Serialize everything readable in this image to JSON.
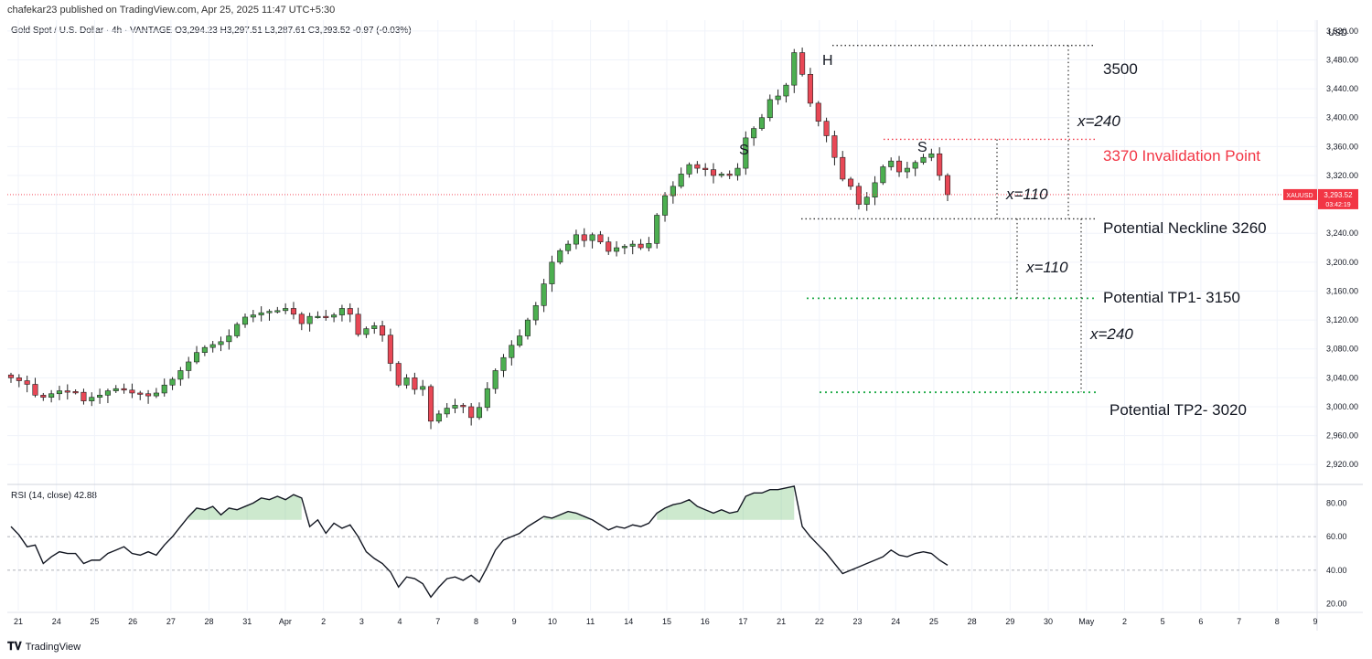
{
  "header": {
    "published": "chafekar23 published on TradingView.com, Apr 25, 2025 11:47 UTC+5:30",
    "symbol_line": "Gold Spot / U.S. Dollar · 4h · VANTAGE  O3,294.23  H3,297.51  L3,287.61  C3,293.52  -0.97 (-0.03%)",
    "currency": "USD"
  },
  "rsi": {
    "legend": "RSI (14, close)  42.88"
  },
  "footer": {
    "logo": "𝐓𝐕",
    "brand": "TradingView"
  },
  "price_tag": {
    "symbol": "XAUUSD",
    "price": "3,293.52",
    "timer": "03:42:19"
  },
  "colors": {
    "up": "#4caf50",
    "down": "#e84856",
    "grid": "#f0f3fa",
    "invalid": "#f23645",
    "tp": "#22ab4a"
  },
  "chart_data": {
    "type": "candlestick",
    "y_ticks": [
      "3,520.00",
      "3,480.00",
      "3,440.00",
      "3,400.00",
      "3,360.00",
      "3,320.00",
      "3,280.00",
      "3,240.00",
      "3,200.00",
      "3,160.00",
      "3,120.00",
      "3,080.00",
      "3,040.00",
      "3,000.00",
      "2,960.00",
      "2,920.00"
    ],
    "y_tick_values": [
      3520,
      3480,
      3440,
      3400,
      3360,
      3320,
      3280,
      3240,
      3200,
      3160,
      3120,
      3080,
      3040,
      3000,
      2960,
      2920
    ],
    "ylim": [
      2895,
      3535
    ],
    "x_ticks": [
      "21",
      "24",
      "25",
      "26",
      "27",
      "28",
      "31",
      "Apr",
      "2",
      "3",
      "4",
      "7",
      "8",
      "9",
      "10",
      "11",
      "14",
      "15",
      "16",
      "17",
      "21",
      "22",
      "23",
      "24",
      "25",
      "28",
      "29",
      "30",
      "May",
      "2",
      "5",
      "6",
      "7",
      "8",
      "9"
    ],
    "candles_close": [
      3040,
      3036,
      3031,
      3016,
      3013,
      3018,
      3022,
      3021,
      3020,
      3008,
      3013,
      3016,
      3022,
      3025,
      3023,
      3019,
      3018,
      3015,
      3019,
      3030,
      3038,
      3050,
      3062,
      3075,
      3082,
      3086,
      3090,
      3098,
      3114,
      3124,
      3127,
      3130,
      3132,
      3133,
      3136,
      3128,
      3115,
      3125,
      3125,
      3124,
      3127,
      3136,
      3128,
      3100,
      3108,
      3112,
      3099,
      3060,
      3030,
      3040,
      3024,
      3028,
      2980,
      2990,
      2998,
      3002,
      3000,
      2985,
      2999,
      3025,
      3050,
      3068,
      3085,
      3098,
      3120,
      3140,
      3170,
      3200,
      3216,
      3225,
      3238,
      3230,
      3238,
      3228,
      3215,
      3220,
      3222,
      3225,
      3220,
      3226,
      3265,
      3292,
      3305,
      3322,
      3335,
      3330,
      3328,
      3320,
      3322,
      3320,
      3330,
      3372,
      3385,
      3400,
      3425,
      3430,
      3445,
      3490,
      3460,
      3420,
      3395,
      3375,
      3345,
      3315,
      3305,
      3280,
      3290,
      3310,
      3332,
      3340,
      3325,
      3330,
      3338,
      3345,
      3350,
      3320,
      3293.52
    ],
    "annotations": {
      "head": "H",
      "shoulder_left": "S",
      "shoulder_right": "S",
      "level_3500": "3500",
      "invalidation": "3370 Invalidation Point",
      "neckline": "Potential Neckline 3260",
      "tp1": "Potential TP1- 3150",
      "tp2": "Potential TP2- 3020",
      "x240_top": "x=240",
      "x110_top": "x=110",
      "x110_bottom": "x=110",
      "x240_bottom": "x=240"
    },
    "levels": {
      "head": 3500,
      "invalidation": 3370,
      "neckline": 3260,
      "tp1": 3150,
      "tp2": 3020,
      "last": 3293.52
    },
    "rsi": {
      "y_ticks": [
        "80.00",
        "60.00",
        "40.00",
        "20.00"
      ],
      "y_tick_values": [
        80,
        60,
        40,
        20
      ],
      "ylim": [
        16,
        90
      ],
      "bands": [
        60,
        40
      ],
      "values": [
        66,
        61,
        54,
        55,
        44,
        48,
        51,
        50,
        50,
        44,
        46,
        46,
        50,
        52,
        54,
        50,
        49,
        51,
        49,
        55,
        60,
        66,
        72,
        77,
        76,
        78,
        73,
        77,
        76,
        78,
        80,
        83,
        82,
        84,
        82,
        85,
        83,
        66,
        70,
        62,
        68,
        65,
        67,
        60,
        51,
        47,
        44,
        39,
        30,
        36,
        35,
        32,
        24,
        30,
        35,
        36,
        34,
        37,
        33,
        42,
        52,
        58,
        60,
        62,
        66,
        69,
        72,
        71,
        73,
        75,
        74,
        72,
        70,
        67,
        64,
        66,
        65,
        67,
        66,
        68,
        74,
        77,
        79,
        80,
        82,
        78,
        76,
        74,
        76,
        74,
        75,
        84,
        86,
        86,
        88,
        88,
        89,
        90,
        66,
        60,
        55,
        50,
        44,
        38,
        40,
        42,
        44,
        46,
        48,
        52,
        49,
        48,
        50,
        51,
        50,
        46,
        43
      ]
    }
  }
}
